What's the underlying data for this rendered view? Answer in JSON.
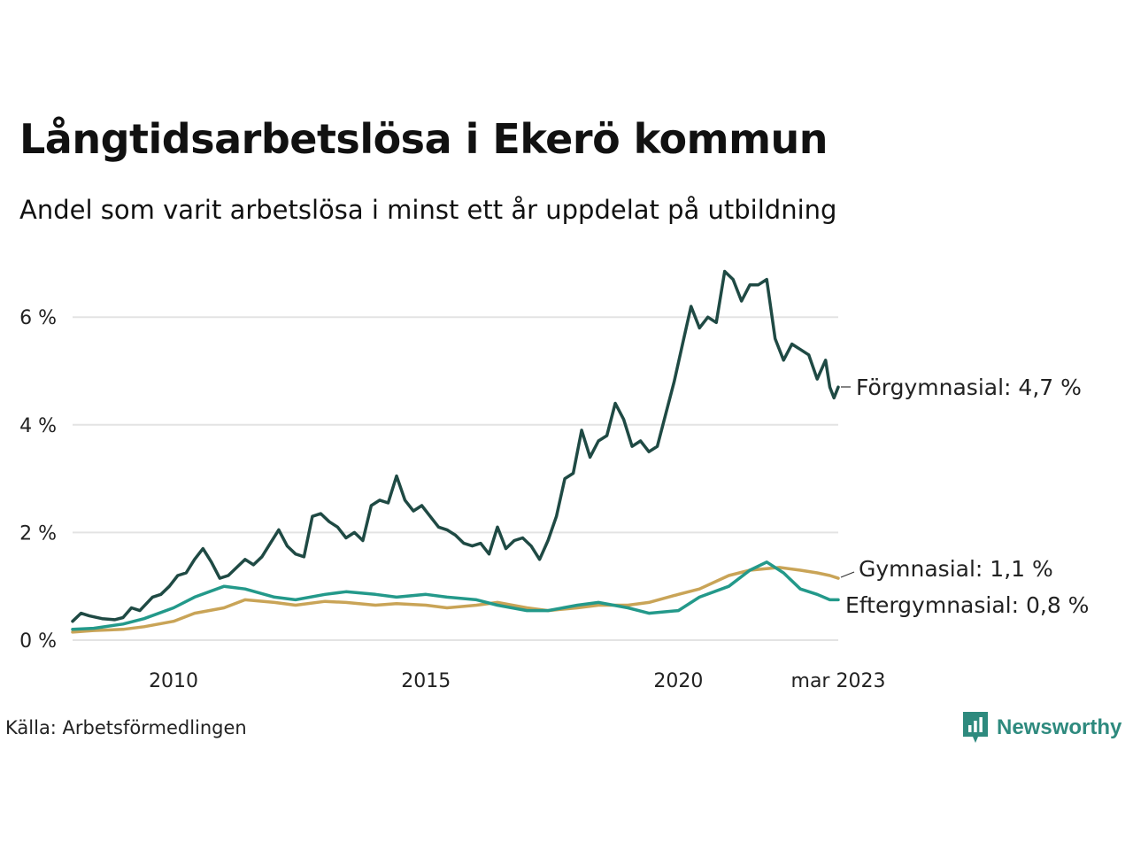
{
  "title": "Långtidsarbetslösa i Ekerö kommun",
  "subtitle": "Andel som varit arbetslösa i minst ett år uppdelat på utbildning",
  "source": "Källa: Arbetsförmedlingen",
  "brand": "Newsworthy",
  "icons": {
    "brand": "newsworthy-logo-icon"
  },
  "chart_data": {
    "type": "line",
    "title": "Långtidsarbetslösa i Ekerö kommun",
    "subtitle": "Andel som varit arbetslösa i minst ett år uppdelat på utbildning",
    "xlabel": "",
    "ylabel": "",
    "xlim": [
      "2008-01",
      "2023-03"
    ],
    "ylim": [
      0,
      7
    ],
    "grid": true,
    "legend": "direct labels at line ends",
    "y_ticks": [
      {
        "value": 0,
        "label": "0 %"
      },
      {
        "value": 2,
        "label": "2 %"
      },
      {
        "value": 4,
        "label": "4 %"
      },
      {
        "value": 6,
        "label": "6 %"
      }
    ],
    "x_ticks": [
      {
        "value": "2010-01",
        "label": "2010"
      },
      {
        "value": "2015-01",
        "label": "2015"
      },
      {
        "value": "2020-01",
        "label": "2020"
      },
      {
        "value": "2023-03",
        "label": "mar 2023"
      }
    ],
    "series": [
      {
        "name": "Förgymnasial",
        "end_label": "Förgymnasial: 4,7 %",
        "color": "#1f4a44",
        "points": [
          [
            "2008-01",
            0.35
          ],
          [
            "2008-03",
            0.5
          ],
          [
            "2008-05",
            0.45
          ],
          [
            "2008-08",
            0.4
          ],
          [
            "2008-11",
            0.38
          ],
          [
            "2009-01",
            0.42
          ],
          [
            "2009-03",
            0.6
          ],
          [
            "2009-05",
            0.55
          ],
          [
            "2009-08",
            0.8
          ],
          [
            "2009-10",
            0.85
          ],
          [
            "2009-12",
            1.0
          ],
          [
            "2010-02",
            1.2
          ],
          [
            "2010-04",
            1.25
          ],
          [
            "2010-06",
            1.5
          ],
          [
            "2010-08",
            1.7
          ],
          [
            "2010-10",
            1.45
          ],
          [
            "2010-12",
            1.15
          ],
          [
            "2011-02",
            1.2
          ],
          [
            "2011-04",
            1.35
          ],
          [
            "2011-06",
            1.5
          ],
          [
            "2011-08",
            1.4
          ],
          [
            "2011-10",
            1.55
          ],
          [
            "2011-12",
            1.8
          ],
          [
            "2012-02",
            2.05
          ],
          [
            "2012-04",
            1.75
          ],
          [
            "2012-06",
            1.6
          ],
          [
            "2012-08",
            1.55
          ],
          [
            "2012-10",
            2.3
          ],
          [
            "2012-12",
            2.35
          ],
          [
            "2013-02",
            2.2
          ],
          [
            "2013-04",
            2.1
          ],
          [
            "2013-06",
            1.9
          ],
          [
            "2013-08",
            2.0
          ],
          [
            "2013-10",
            1.85
          ],
          [
            "2013-12",
            2.5
          ],
          [
            "2014-02",
            2.6
          ],
          [
            "2014-04",
            2.55
          ],
          [
            "2014-06",
            3.05
          ],
          [
            "2014-08",
            2.6
          ],
          [
            "2014-10",
            2.4
          ],
          [
            "2014-12",
            2.5
          ],
          [
            "2015-02",
            2.3
          ],
          [
            "2015-04",
            2.1
          ],
          [
            "2015-06",
            2.05
          ],
          [
            "2015-08",
            1.95
          ],
          [
            "2015-10",
            1.8
          ],
          [
            "2015-12",
            1.75
          ],
          [
            "2016-02",
            1.8
          ],
          [
            "2016-04",
            1.6
          ],
          [
            "2016-06",
            2.1
          ],
          [
            "2016-08",
            1.7
          ],
          [
            "2016-10",
            1.85
          ],
          [
            "2016-12",
            1.9
          ],
          [
            "2017-02",
            1.75
          ],
          [
            "2017-04",
            1.5
          ],
          [
            "2017-06",
            1.85
          ],
          [
            "2017-08",
            2.3
          ],
          [
            "2017-10",
            3.0
          ],
          [
            "2017-12",
            3.1
          ],
          [
            "2018-02",
            3.9
          ],
          [
            "2018-04",
            3.4
          ],
          [
            "2018-06",
            3.7
          ],
          [
            "2018-08",
            3.8
          ],
          [
            "2018-10",
            4.4
          ],
          [
            "2018-12",
            4.1
          ],
          [
            "2019-02",
            3.6
          ],
          [
            "2019-04",
            3.7
          ],
          [
            "2019-06",
            3.5
          ],
          [
            "2019-08",
            3.6
          ],
          [
            "2019-10",
            4.2
          ],
          [
            "2019-12",
            4.8
          ],
          [
            "2020-02",
            5.5
          ],
          [
            "2020-04",
            6.2
          ],
          [
            "2020-06",
            5.8
          ],
          [
            "2020-08",
            6.0
          ],
          [
            "2020-10",
            5.9
          ],
          [
            "2020-12",
            6.85
          ],
          [
            "2021-02",
            6.7
          ],
          [
            "2021-04",
            6.3
          ],
          [
            "2021-06",
            6.6
          ],
          [
            "2021-08",
            6.6
          ],
          [
            "2021-10",
            6.7
          ],
          [
            "2021-12",
            5.6
          ],
          [
            "2022-02",
            5.2
          ],
          [
            "2022-04",
            5.5
          ],
          [
            "2022-06",
            5.4
          ],
          [
            "2022-08",
            5.3
          ],
          [
            "2022-10",
            4.85
          ],
          [
            "2022-12",
            5.2
          ],
          [
            "2023-01",
            4.7
          ],
          [
            "2023-02",
            4.5
          ],
          [
            "2023-03",
            4.7
          ]
        ]
      },
      {
        "name": "Gymnasial",
        "end_label": "Gymnasial: 1,1 %",
        "color": "#c9a457",
        "points": [
          [
            "2008-01",
            0.15
          ],
          [
            "2008-06",
            0.18
          ],
          [
            "2009-01",
            0.2
          ],
          [
            "2009-06",
            0.25
          ],
          [
            "2010-01",
            0.35
          ],
          [
            "2010-06",
            0.5
          ],
          [
            "2011-01",
            0.6
          ],
          [
            "2011-06",
            0.75
          ],
          [
            "2012-01",
            0.7
          ],
          [
            "2012-06",
            0.65
          ],
          [
            "2013-01",
            0.72
          ],
          [
            "2013-06",
            0.7
          ],
          [
            "2014-01",
            0.65
          ],
          [
            "2014-06",
            0.68
          ],
          [
            "2015-01",
            0.65
          ],
          [
            "2015-06",
            0.6
          ],
          [
            "2016-01",
            0.65
          ],
          [
            "2016-06",
            0.7
          ],
          [
            "2017-01",
            0.6
          ],
          [
            "2017-06",
            0.55
          ],
          [
            "2018-01",
            0.6
          ],
          [
            "2018-06",
            0.65
          ],
          [
            "2019-01",
            0.65
          ],
          [
            "2019-06",
            0.7
          ],
          [
            "2020-01",
            0.85
          ],
          [
            "2020-06",
            0.95
          ],
          [
            "2021-01",
            1.2
          ],
          [
            "2021-06",
            1.3
          ],
          [
            "2022-01",
            1.35
          ],
          [
            "2022-06",
            1.3
          ],
          [
            "2022-10",
            1.25
          ],
          [
            "2023-01",
            1.2
          ],
          [
            "2023-03",
            1.15
          ]
        ]
      },
      {
        "name": "Eftergymnasial",
        "end_label": "Eftergymnasial: 0,8 %",
        "color": "#23998a",
        "points": [
          [
            "2008-01",
            0.2
          ],
          [
            "2008-06",
            0.22
          ],
          [
            "2009-01",
            0.3
          ],
          [
            "2009-06",
            0.4
          ],
          [
            "2010-01",
            0.6
          ],
          [
            "2010-06",
            0.8
          ],
          [
            "2011-01",
            1.0
          ],
          [
            "2011-06",
            0.95
          ],
          [
            "2012-01",
            0.8
          ],
          [
            "2012-06",
            0.75
          ],
          [
            "2013-01",
            0.85
          ],
          [
            "2013-06",
            0.9
          ],
          [
            "2014-01",
            0.85
          ],
          [
            "2014-06",
            0.8
          ],
          [
            "2015-01",
            0.85
          ],
          [
            "2015-06",
            0.8
          ],
          [
            "2016-01",
            0.75
          ],
          [
            "2016-06",
            0.65
          ],
          [
            "2017-01",
            0.55
          ],
          [
            "2017-06",
            0.55
          ],
          [
            "2018-01",
            0.65
          ],
          [
            "2018-06",
            0.7
          ],
          [
            "2019-01",
            0.6
          ],
          [
            "2019-06",
            0.5
          ],
          [
            "2020-01",
            0.55
          ],
          [
            "2020-06",
            0.8
          ],
          [
            "2021-01",
            1.0
          ],
          [
            "2021-06",
            1.3
          ],
          [
            "2021-10",
            1.45
          ],
          [
            "2022-02",
            1.25
          ],
          [
            "2022-06",
            0.95
          ],
          [
            "2022-10",
            0.85
          ],
          [
            "2023-01",
            0.75
          ],
          [
            "2023-03",
            0.75
          ]
        ]
      }
    ]
  }
}
